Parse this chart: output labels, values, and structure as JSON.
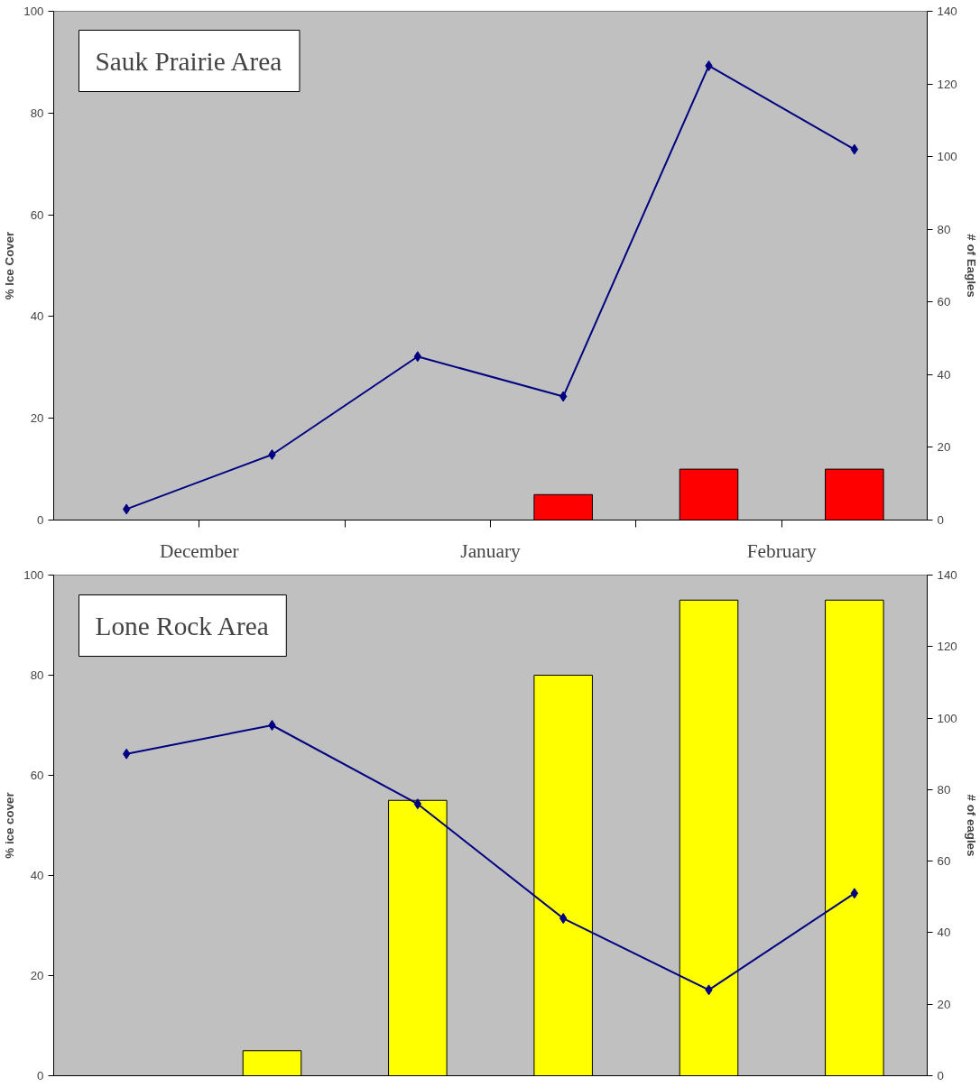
{
  "chart_data": [
    {
      "type": "bar",
      "title": "Sauk Prairie Area",
      "categories": [
        null,
        null,
        null,
        null,
        null,
        null
      ],
      "annotations": [
        "December",
        "January",
        "February"
      ],
      "ylabel": "% Ice Cover",
      "y2label": "# of Eagles",
      "ylim": [
        0,
        100
      ],
      "yticks": [
        0,
        20,
        40,
        60,
        80,
        100
      ],
      "y2lim": [
        0,
        140
      ],
      "y2ticks": [
        0,
        20,
        40,
        60,
        80,
        100,
        120,
        140
      ],
      "marker": "diamond",
      "series": [
        {
          "color": "#ff0000",
          "values": [
            null,
            null,
            null,
            5,
            10,
            10
          ]
        },
        {
          "type": "line",
          "axis": "y2",
          "color": "#000080",
          "values": [
            3,
            18,
            45,
            34,
            125,
            102
          ]
        }
      ]
    },
    {
      "type": "bar",
      "title": "Lone Rock Area",
      "categories": [
        null,
        null,
        null,
        null,
        null,
        null
      ],
      "ylabel": "% ice cover",
      "y2label": "# of eagles",
      "ylim": [
        0,
        100
      ],
      "yticks": [
        0,
        20,
        40,
        60,
        80,
        100
      ],
      "y2lim": [
        0,
        140
      ],
      "y2ticks": [
        0,
        20,
        40,
        60,
        80,
        100,
        120,
        140
      ],
      "marker": "diamond",
      "series": [
        {
          "color": "#ffff00",
          "values": [
            null,
            5,
            55,
            80,
            95,
            95
          ]
        },
        {
          "type": "line",
          "axis": "y2",
          "color": "#000080",
          "values": [
            90,
            98,
            76,
            44,
            24,
            51
          ]
        }
      ]
    }
  ]
}
